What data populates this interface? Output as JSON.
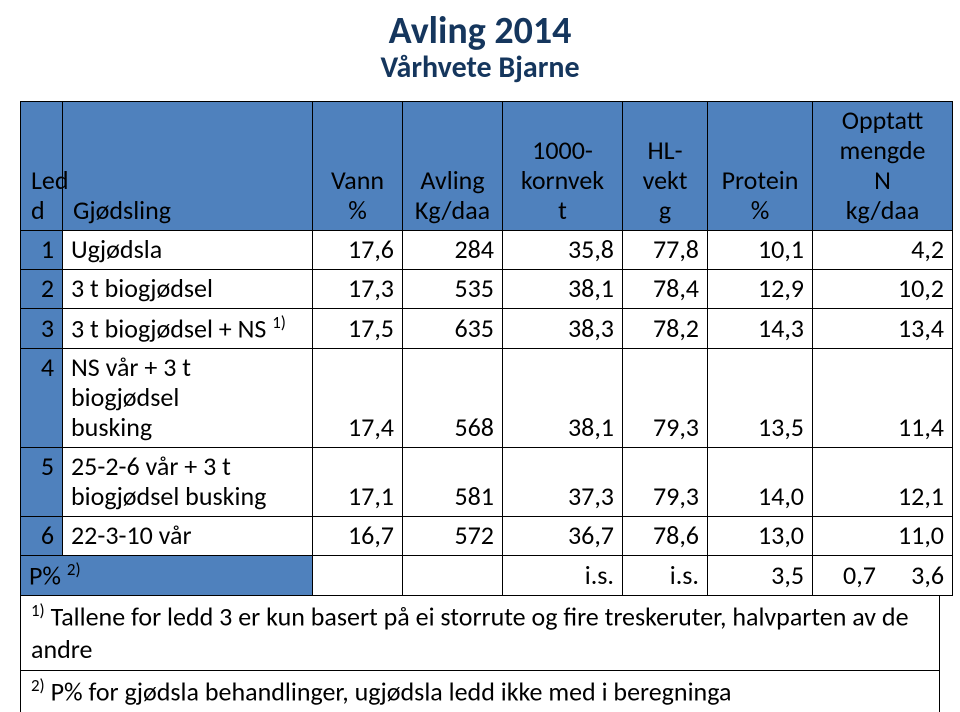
{
  "title": "Avling 2014",
  "subtitle": "Vårhvete Bjarne",
  "header": {
    "led_top": "Led",
    "led_bot": "d",
    "gjodsling": "Gjødsling",
    "vann_top": "Vann",
    "vann_bot": "%",
    "avling_top": "Avling",
    "avling_bot": "Kg/daa",
    "korn_top": "1000-",
    "korn_mid": "kornvek",
    "korn_bot": "t",
    "hl_top": "HL-",
    "hl_mid": "vekt",
    "hl_bot": "g",
    "prot_top": "Protein",
    "prot_bot": "%",
    "opp_l1": "Opptatt",
    "opp_l2": "mengde",
    "opp_l3": "N",
    "opp_l4": "kg/daa"
  },
  "rows": [
    {
      "n": "1",
      "label": "Ugjødsla",
      "vann": "17,6",
      "av": "284",
      "korn": "35,8",
      "hl": "77,8",
      "prot": "10,1",
      "opp": "4,2"
    },
    {
      "n": "2",
      "label": "3 t biogjødsel",
      "vann": "17,3",
      "av": "535",
      "korn": "38,1",
      "hl": "78,4",
      "prot": "12,9",
      "opp": "10,2"
    },
    {
      "n": "3",
      "label_pre": "3 t biogjødsel + NS ",
      "label_sup": "1)",
      "vann": "17,5",
      "av": "635",
      "korn": "38,3",
      "hl": "78,2",
      "prot": "14,3",
      "opp": "13,4"
    },
    {
      "n": "4",
      "label_line1": "NS vår + 3 t biogjødsel",
      "label_line2": "busking",
      "vann": "17,4",
      "av": "568",
      "korn": "38,1",
      "hl": "79,3",
      "prot": "13,5",
      "opp": "11,4"
    },
    {
      "n": "5",
      "label_line1": "25-2-6 vår + 3 t",
      "label_line2": "biogjødsel busking",
      "vann": "17,1",
      "av": "581",
      "korn": "37,3",
      "hl": "79,3",
      "prot": "14,0",
      "opp": "12,1"
    },
    {
      "n": "6",
      "label": "22-3-10 vår",
      "vann": "16,7",
      "av": "572",
      "korn": "36,7",
      "hl": "78,6",
      "prot": "13,0",
      "opp": "11,0"
    }
  ],
  "prow": {
    "label_pre": "P% ",
    "label_sup": "2)",
    "is1": "i.s.",
    "is2": "i.s.",
    "v1": "3,5",
    "v2": "0,7",
    "v3": "3,6"
  },
  "footnotes": {
    "f1_sup": "1)",
    "f1_text": " Tallene for ledd 3 er kun basert på ei storrute og fire treskeruter, halvparten av de andre",
    "f2_sup": "2)",
    "f2_text": " P% for gjødsla behandlinger, ugjødsla ledd ikke med i beregninga"
  },
  "colors": {
    "header_bg": "#4f81bd",
    "title_color": "#15365d",
    "border_color": "#000000",
    "background": "#ffffff"
  }
}
